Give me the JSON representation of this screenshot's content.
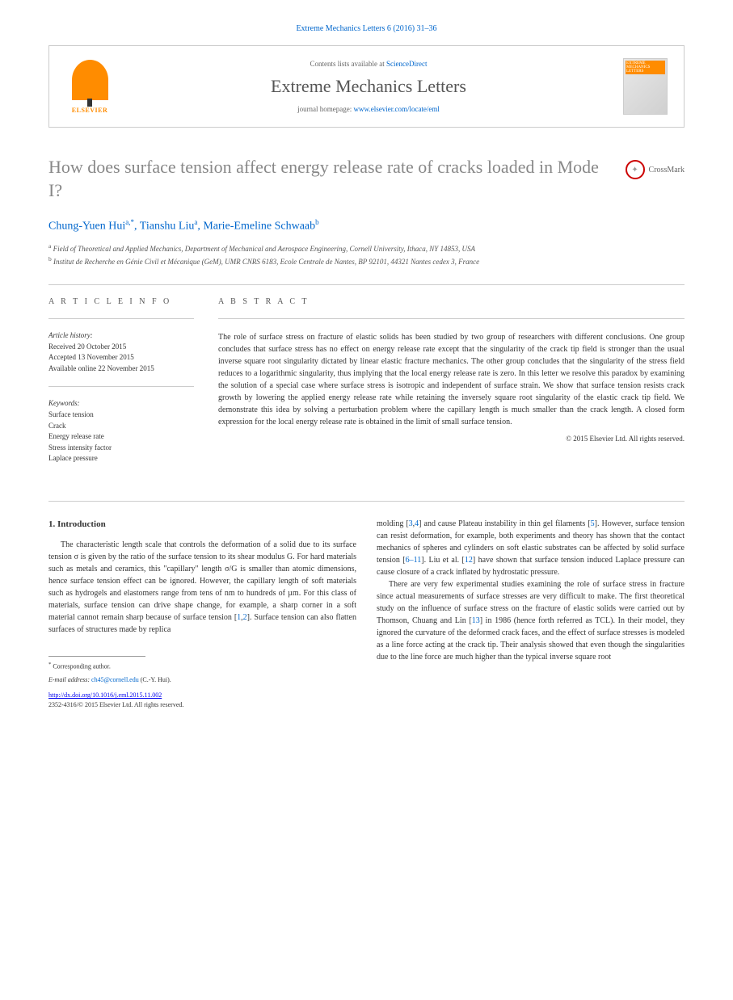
{
  "header": {
    "citation": "Extreme Mechanics Letters 6 (2016) 31–36"
  },
  "contentsBox": {
    "publisher": "ELSEVIER",
    "availableText": "Contents lists available at ",
    "availableLink": "ScienceDirect",
    "journalName": "Extreme Mechanics Letters",
    "homepageLabel": "journal homepage: ",
    "homepageLink": "www.elsevier.com/locate/eml",
    "coverLabel": "EXTREME MECHANICS LETTERS"
  },
  "title": "How does surface tension affect energy release rate of cracks loaded in Mode I?",
  "crossmark": "CrossMark",
  "authors": {
    "a1_name": "Chung-Yuen Hui",
    "a1_aff": "a,",
    "a1_corr": "*",
    "a2_name": ", Tianshu Liu",
    "a2_aff": "a",
    "a3_name": ", Marie-Emeline Schwaab",
    "a3_aff": "b"
  },
  "affiliations": {
    "a_sup": "a",
    "a_text": " Field of Theoretical and Applied Mechanics, Department of Mechanical and Aerospace Engineering, Cornell University, Ithaca, NY 14853, USA",
    "b_sup": "b",
    "b_text": " Institut de Recherche en Génie Civil et Mécanique (GeM), UMR CNRS 6183, Ecole Centrale de Nantes, BP 92101, 44321 Nantes cedex 3, France"
  },
  "articleInfo": {
    "heading": "A R T I C L E   I N F O",
    "historyLabel": "Article history:",
    "received": "Received 20 October 2015",
    "accepted": "Accepted 13 November 2015",
    "online": "Available online 22 November 2015",
    "keywordsLabel": "Keywords:",
    "kw1": "Surface tension",
    "kw2": "Crack",
    "kw3": "Energy release rate",
    "kw4": "Stress intensity factor",
    "kw5": "Laplace pressure"
  },
  "abstract": {
    "heading": "A B S T R A C T",
    "text": "The role of surface stress on fracture of elastic solids has been studied by two group of researchers with different conclusions. One group concludes that surface stress has no effect on energy release rate except that the singularity of the crack tip field is stronger than the usual inverse square root singularity dictated by linear elastic fracture mechanics. The other group concludes that the singularity of the stress field reduces to a logarithmic singularity, thus implying that the local energy release rate is zero. In this letter we resolve this paradox by examining the solution of a special case where surface stress is isotropic and independent of surface strain. We show that surface tension resists crack growth by lowering the applied energy release rate while retaining the inversely square root singularity of the elastic crack tip field. We demonstrate this idea by solving a perturbation problem where the capillary length is much smaller than the crack length. A closed form expression for the local energy release rate is obtained in the limit of small surface tension.",
    "copyright": "© 2015 Elsevier Ltd. All rights reserved."
  },
  "body": {
    "sectionNum": "1. ",
    "sectionTitle": "Introduction",
    "col1p1a": "The characteristic length scale that controls the deformation of a solid due to its surface tension σ is given by the ratio of the surface tension to its shear modulus G. For hard materials such as metals and ceramics, this \"capillary\" length σ/G is smaller than atomic dimensions, hence surface tension effect can be ignored. However, the capillary length of soft materials such as hydrogels and elastomers range from tens of nm to hundreds of µm. For this class of materials, surface tension can drive shape change, for example, a sharp corner in a soft material cannot remain sharp because of surface tension [",
    "col1ref1": "1",
    "col1comma1": ",",
    "col1ref2": "2",
    "col1p1b": "]. Surface tension can also flatten surfaces of structures made by replica",
    "col2p1a": "molding [",
    "col2ref3": "3",
    "col2comma1": ",",
    "col2ref4": "4",
    "col2p1b": "] and cause Plateau instability in thin gel filaments [",
    "col2ref5": "5",
    "col2p1c": "]. However, surface tension can resist deformation, for example, both experiments and theory has shown that the contact mechanics of spheres and cylinders on soft elastic substrates can be affected by solid surface tension [",
    "col2ref6": "6–11",
    "col2p1d": "]. Liu et al. [",
    "col2ref12": "12",
    "col2p1e": "] have shown that surface tension induced Laplace pressure can cause closure of a crack inflated by hydrostatic pressure.",
    "col2p2a": "There are very few experimental studies examining the role of surface stress in fracture since actual measurements of surface stresses are very difficult to make. The first theoretical study on the influence of surface stress on the fracture of elastic solids were carried out by Thomson, Chuang and Lin [",
    "col2ref13": "13",
    "col2p2b": "] in 1986 (hence forth referred as TCL). In their model, they ignored the curvature of the deformed crack faces, and the effect of surface stresses is modeled as a line force acting at the crack tip. Their analysis showed that even though the singularities due to the line force are much higher than the typical inverse square root"
  },
  "footer": {
    "corrLabel": "*",
    "corrText": " Corresponding author.",
    "emailLabel": "E-mail address: ",
    "email": "ch45@cornell.edu",
    "emailSuffix": " (C.-Y. Hui).",
    "doi": "http://dx.doi.org/10.1016/j.eml.2015.11.002",
    "issn": "2352-4316/",
    "copyright": "© 2015 Elsevier Ltd. All rights reserved."
  }
}
